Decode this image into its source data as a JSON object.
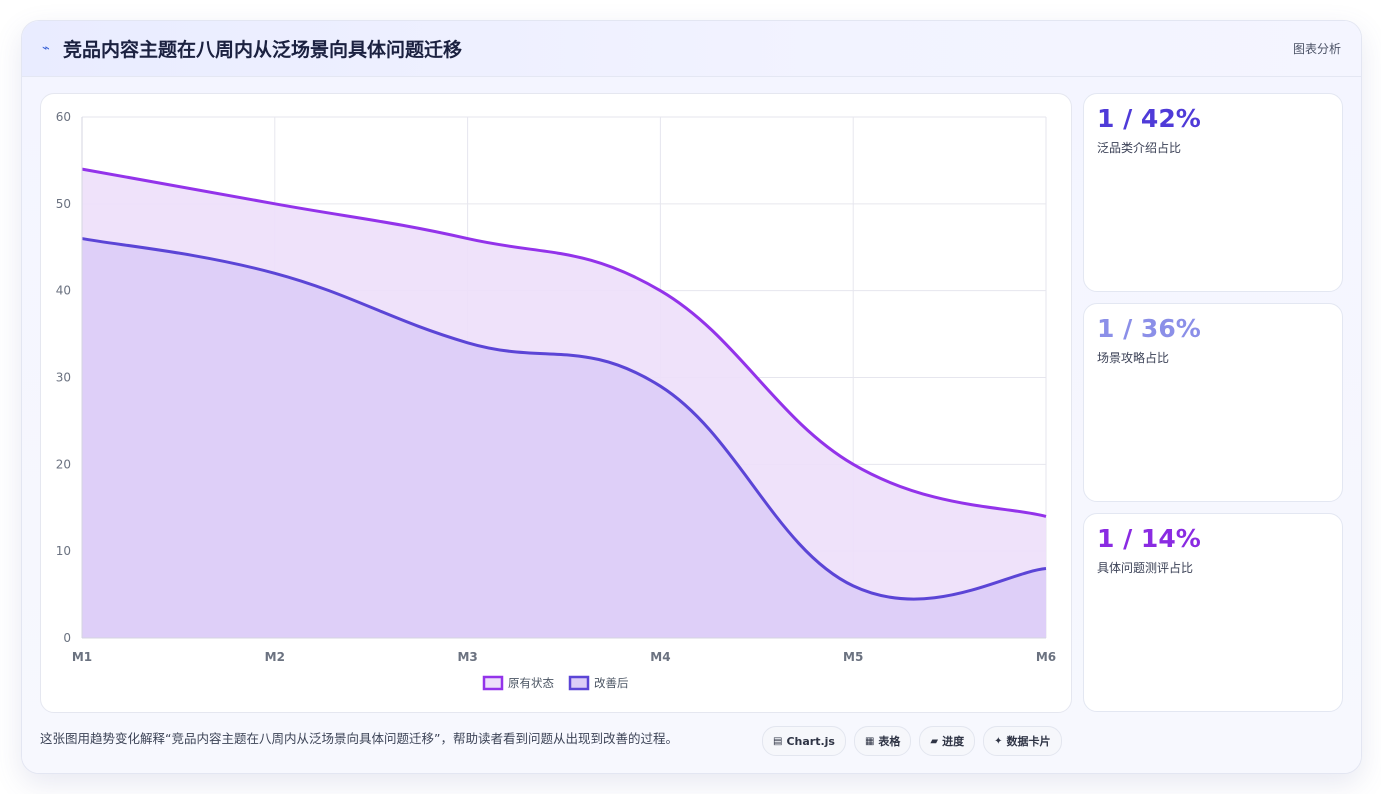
{
  "header": {
    "icon": "chart-line-icon",
    "icon_glyph": "⌁",
    "title": "竞品内容主题在八周内从泛场景向具体问题迁移",
    "badge": "图表分析"
  },
  "chart_data": {
    "type": "area",
    "title": "",
    "xlabel": "",
    "ylabel": "",
    "categories": [
      "M1",
      "M2",
      "M3",
      "M4",
      "M5",
      "M6"
    ],
    "ylim": [
      0,
      60
    ],
    "yticks": [
      0,
      10,
      20,
      30,
      40,
      50,
      60
    ],
    "grid": true,
    "legend_position": "bottom",
    "series": [
      {
        "name": "原有状态",
        "values": [
          54,
          50,
          46,
          40,
          20,
          14
        ],
        "color": "#9333ea",
        "fill": "#eddffa"
      },
      {
        "name": "改善后",
        "values": [
          46,
          42,
          34,
          29,
          6,
          8
        ],
        "color": "#5b45d6",
        "fill": "#dccdf7"
      }
    ]
  },
  "stats": [
    {
      "value": "1 / 42%",
      "label": "泛品类介绍占比",
      "color": "#4f3bd8"
    },
    {
      "value": "1 / 36%",
      "label": "场景攻略占比",
      "color": "#8b8fe8"
    },
    {
      "value": "1 / 14%",
      "label": "具体问题测评占比",
      "color": "#8a2be2"
    }
  ],
  "footer": {
    "text": "这张图用趋势变化解释“竞品内容主题在八周内从泛场景向具体问题迁移”，帮助读者看到问题从出现到改善的过程。"
  },
  "pills": [
    {
      "icon": "chart-js-icon",
      "glyph": "▤",
      "label": "Chart.js"
    },
    {
      "icon": "table-icon",
      "glyph": "▦",
      "label": "表格"
    },
    {
      "icon": "progress-icon",
      "glyph": "▰",
      "label": "进度"
    },
    {
      "icon": "data-card-icon",
      "glyph": "✦",
      "label": "数据卡片"
    }
  ]
}
